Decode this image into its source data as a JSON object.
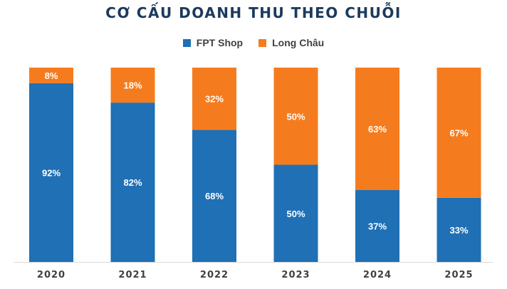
{
  "chart_data": {
    "type": "bar",
    "stacked": true,
    "percent": true,
    "title": "CƠ CẤU DOANH THU THEO CHUỖI",
    "categories": [
      "2020",
      "2021",
      "2022",
      "2023",
      "2024",
      "2025"
    ],
    "series": [
      {
        "name": "FPT Shop",
        "color": "#1f70b5",
        "values": [
          92,
          82,
          68,
          50,
          37,
          33
        ],
        "labels": [
          "92%",
          "82%",
          "68%",
          "50%",
          "37%",
          "33%"
        ]
      },
      {
        "name": "Long Châu",
        "color": "#f57c1e",
        "values": [
          8,
          18,
          32,
          50,
          63,
          67
        ],
        "labels": [
          "8%",
          "18%",
          "32%",
          "50%",
          "63%",
          "67%"
        ]
      }
    ],
    "ylim": [
      0,
      100
    ],
    "grid": false,
    "legend_position": "top-center"
  }
}
